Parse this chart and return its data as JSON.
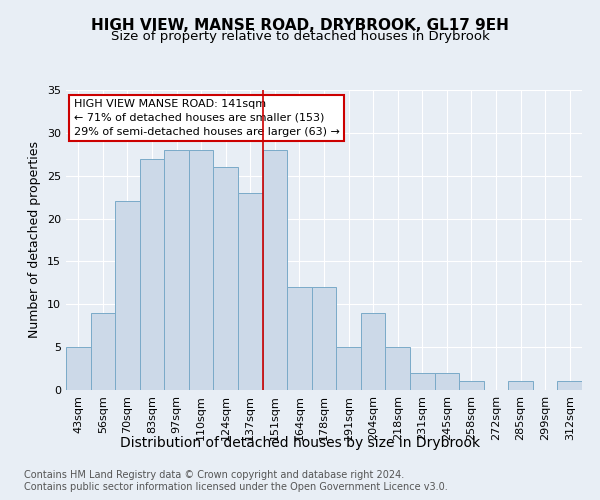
{
  "title": "HIGH VIEW, MANSE ROAD, DRYBROOK, GL17 9EH",
  "subtitle": "Size of property relative to detached houses in Drybrook",
  "xlabel": "Distribution of detached houses by size in Drybrook",
  "ylabel": "Number of detached properties",
  "categories": [
    "43sqm",
    "56sqm",
    "70sqm",
    "83sqm",
    "97sqm",
    "110sqm",
    "124sqm",
    "137sqm",
    "151sqm",
    "164sqm",
    "178sqm",
    "191sqm",
    "204sqm",
    "218sqm",
    "231sqm",
    "245sqm",
    "258sqm",
    "272sqm",
    "285sqm",
    "299sqm",
    "312sqm"
  ],
  "values": [
    5,
    9,
    22,
    27,
    28,
    28,
    26,
    23,
    28,
    12,
    12,
    5,
    9,
    5,
    2,
    2,
    1,
    0,
    1,
    0,
    1
  ],
  "highlight_index": 8,
  "bar_color": "#ccd9e8",
  "bar_edge_color": "#7aaac8",
  "background_color": "#e8eef5",
  "grid_color": "#ffffff",
  "annotation_box_text": "HIGH VIEW MANSE ROAD: 141sqm\n← 71% of detached houses are smaller (153)\n29% of semi-detached houses are larger (63) →",
  "annotation_box_edge_color": "#cc0000",
  "highlight_line_color": "#cc0000",
  "ylim": [
    0,
    35
  ],
  "yticks": [
    0,
    5,
    10,
    15,
    20,
    25,
    30,
    35
  ],
  "footer_text": "Contains HM Land Registry data © Crown copyright and database right 2024.\nContains public sector information licensed under the Open Government Licence v3.0.",
  "title_fontsize": 11,
  "subtitle_fontsize": 9.5,
  "xlabel_fontsize": 10,
  "ylabel_fontsize": 9,
  "tick_fontsize": 8,
  "annotation_fontsize": 8,
  "footer_fontsize": 7
}
